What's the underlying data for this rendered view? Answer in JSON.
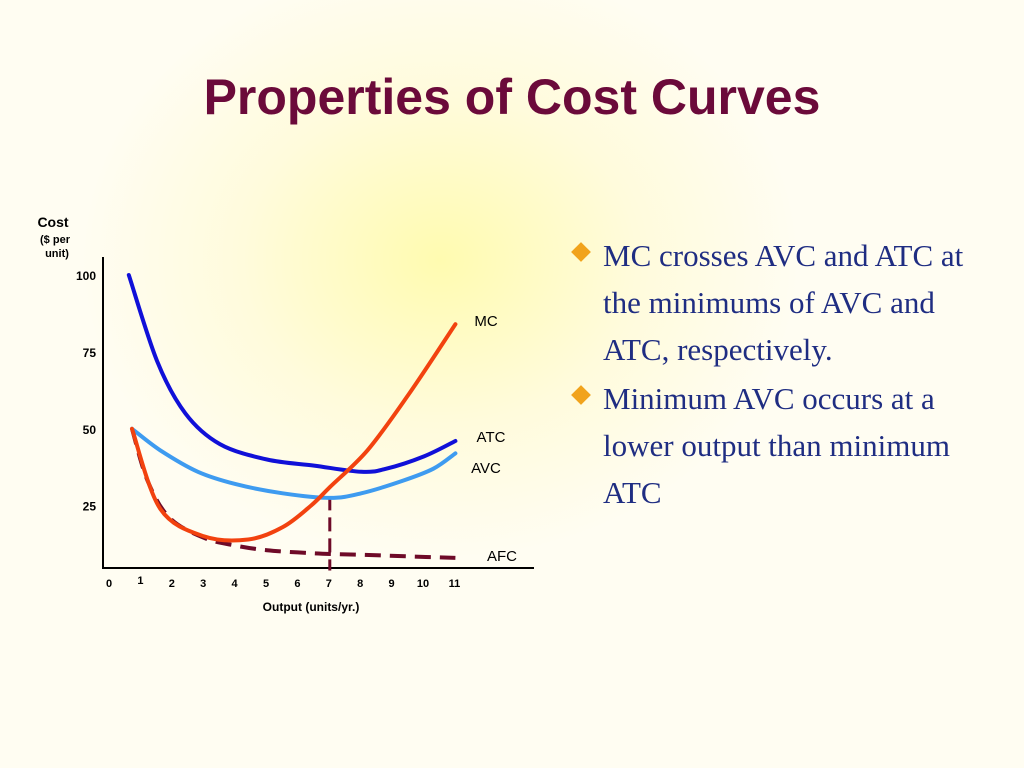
{
  "slide": {
    "title": "Properties of Cost Curves"
  },
  "bullets": [
    "MC crosses AVC and ATC at the minimums of AVC and ATC, respectively.",
    "Minimum AVC occurs at a lower output than minimum ATC"
  ],
  "colors": {
    "title": "#6b0a3a",
    "bullet_text": "#1f2d82",
    "bullet_marker": "#f1a31c"
  },
  "chart_data": {
    "type": "line",
    "ylabel_lines": [
      "Cost",
      "($ per",
      "unit)"
    ],
    "xlabel": "Output (units/yr.)",
    "xlim": [
      0,
      11
    ],
    "ylim": [
      0,
      100
    ],
    "x_ticks": [
      "0",
      "1",
      "2",
      "3",
      "4",
      "5",
      "6",
      "7",
      "8",
      "9",
      "10",
      "11"
    ],
    "y_ticks": [
      "25",
      "50",
      "75",
      "100"
    ],
    "y_tick_values": [
      25,
      50,
      75,
      100
    ],
    "grid": false,
    "series": [
      {
        "name": "MC",
        "color": "#f2420f",
        "dash": false,
        "points": [
          [
            0.7,
            50
          ],
          [
            1.6,
            24
          ],
          [
            3.0,
            15
          ],
          [
            4.4,
            14
          ],
          [
            5.5,
            18
          ],
          [
            6.4,
            25
          ],
          [
            7.0,
            31
          ],
          [
            8.2,
            43
          ],
          [
            9.5,
            61
          ],
          [
            11.0,
            84
          ]
        ]
      },
      {
        "name": "ATC",
        "color": "#1010d8",
        "dash": false,
        "points": [
          [
            0.6,
            100
          ],
          [
            1.5,
            72
          ],
          [
            2.4,
            55
          ],
          [
            3.5,
            45
          ],
          [
            5.0,
            40
          ],
          [
            6.5,
            38
          ],
          [
            8.0,
            36
          ],
          [
            8.8,
            37
          ],
          [
            10.0,
            41
          ],
          [
            11.0,
            46
          ]
        ]
      },
      {
        "name": "AVC",
        "color": "#3e9bf0",
        "dash": false,
        "points": [
          [
            0.7,
            50
          ],
          [
            1.6,
            43
          ],
          [
            2.8,
            36
          ],
          [
            4.0,
            32
          ],
          [
            5.5,
            29
          ],
          [
            7.0,
            27.5
          ],
          [
            8.0,
            29
          ],
          [
            9.3,
            33
          ],
          [
            10.3,
            37
          ],
          [
            11.0,
            42
          ]
        ]
      },
      {
        "name": "AFC",
        "color": "#6e0a28",
        "dash": true,
        "points": [
          [
            0.7,
            50
          ],
          [
            1.2,
            33
          ],
          [
            1.9,
            21
          ],
          [
            3.0,
            14.5
          ],
          [
            4.0,
            12
          ],
          [
            5.0,
            10.5
          ],
          [
            6.5,
            9.5
          ],
          [
            8.0,
            9
          ],
          [
            9.5,
            8.5
          ],
          [
            11.0,
            8
          ]
        ]
      }
    ],
    "annotations": [
      {
        "type": "vertical-dashed",
        "x": 7,
        "y_from": 0,
        "y_to": 28,
        "color": "#6e0a28"
      }
    ]
  }
}
